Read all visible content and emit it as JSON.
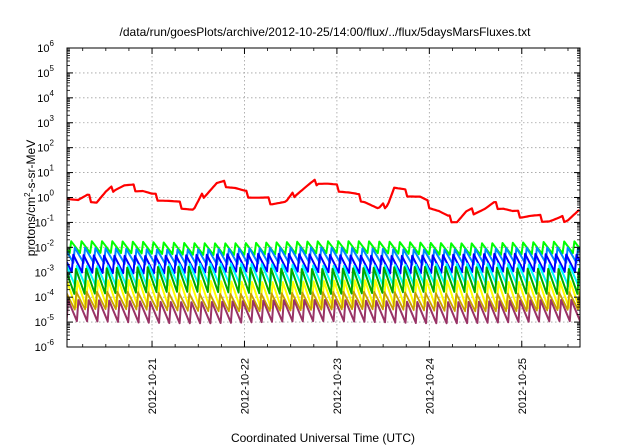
{
  "chart_data": {
    "type": "line",
    "title": "/data/run/goesPlots/archive/2012-10-25/14:00/flux/../flux/5daysMarsFluxes.txt",
    "xlabel": "Coordinated Universal Time (UTC)",
    "ylabel": {
      "base": "protons/cm",
      "exp": "2",
      "rest": "-s-sr-MeV"
    },
    "y_scale": "log",
    "ylim": [
      1e-06,
      1000000.0
    ],
    "xlim": [
      20.08,
      25.63
    ],
    "grid": true,
    "legend": "none",
    "y_ticks": [
      {
        "value": 1e-06,
        "exp": "-6"
      },
      {
        "value": 1e-05,
        "exp": "-5"
      },
      {
        "value": 0.0001,
        "exp": "-4"
      },
      {
        "value": 0.001,
        "exp": "-3"
      },
      {
        "value": 0.01,
        "exp": "-2"
      },
      {
        "value": 0.1,
        "exp": "-1"
      },
      {
        "value": 1,
        "exp": "0"
      },
      {
        "value": 10,
        "exp": "1"
      },
      {
        "value": 100,
        "exp": "2"
      },
      {
        "value": 1000,
        "exp": "3"
      },
      {
        "value": 10000,
        "exp": "4"
      },
      {
        "value": 100000,
        "exp": "5"
      },
      {
        "value": 1000000,
        "exp": "6"
      }
    ],
    "y_tick_base": "10",
    "x_ticks": [
      {
        "value": 21,
        "label": "2012-10-21"
      },
      {
        "value": 22,
        "label": "2012-10-22"
      },
      {
        "value": 23,
        "label": "2012-10-23"
      },
      {
        "value": 24,
        "label": "2012-10-24"
      },
      {
        "value": 25,
        "label": "2012-10-25"
      }
    ],
    "sawtooth_period_days": 0.1111,
    "series": [
      {
        "color": "#ff0000",
        "width": 2.2,
        "points": [
          [
            20.08,
            1.2
          ],
          [
            20.2,
            0.8
          ],
          [
            20.3,
            1.0
          ],
          [
            20.4,
            0.7
          ],
          [
            20.5,
            1.5
          ],
          [
            20.6,
            2.5
          ],
          [
            20.7,
            3.0
          ],
          [
            20.8,
            2.5
          ],
          [
            20.9,
            2.0
          ],
          [
            21.0,
            1.2
          ],
          [
            21.15,
            0.8
          ],
          [
            21.3,
            0.5
          ],
          [
            21.45,
            0.3
          ],
          [
            21.55,
            1.2
          ],
          [
            21.7,
            3.5
          ],
          [
            21.8,
            3.5
          ],
          [
            21.9,
            2.5
          ],
          [
            22.0,
            1.5
          ],
          [
            22.15,
            1.0
          ],
          [
            22.3,
            0.7
          ],
          [
            22.45,
            0.6
          ],
          [
            22.55,
            1.5
          ],
          [
            22.7,
            3.0
          ],
          [
            22.8,
            4.5
          ],
          [
            22.9,
            3.5
          ],
          [
            23.0,
            2.5
          ],
          [
            23.15,
            1.5
          ],
          [
            23.3,
            0.8
          ],
          [
            23.45,
            0.3
          ],
          [
            23.55,
            0.6
          ],
          [
            23.62,
            2.5
          ],
          [
            23.75,
            1.5
          ],
          [
            23.9,
            1.0
          ],
          [
            24.0,
            0.5
          ],
          [
            24.1,
            0.3
          ],
          [
            24.2,
            0.15
          ],
          [
            24.3,
            0.12
          ],
          [
            24.4,
            0.25
          ],
          [
            24.5,
            0.3
          ],
          [
            24.6,
            0.35
          ],
          [
            24.7,
            0.5
          ],
          [
            24.8,
            0.4
          ],
          [
            24.9,
            0.25
          ],
          [
            25.0,
            0.2
          ],
          [
            25.1,
            0.18
          ],
          [
            25.2,
            0.15
          ],
          [
            25.3,
            0.12
          ],
          [
            25.4,
            0.13
          ],
          [
            25.5,
            0.15
          ],
          [
            25.63,
            0.3
          ]
        ],
        "sawtooth_factor": 1.9
      },
      {
        "color": "#00ff00",
        "width": 2.0,
        "high": 0.016,
        "low": 0.0055,
        "phase": 0.0,
        "trend": 0.1,
        "floor": 1.0
      },
      {
        "color": "#0088ff",
        "width": 2.0,
        "high": 0.009,
        "low": 0.0022,
        "phase": 0.35,
        "trend": 0.1,
        "floor": 1.0
      },
      {
        "color": "#0000ff",
        "width": 2.0,
        "high": 0.005,
        "low": 0.001,
        "phase": 0.2,
        "trend": 0.1,
        "floor": 1.0
      },
      {
        "color": "#00ffff",
        "width": 2.0,
        "high": 0.002,
        "low": 0.0003,
        "phase": 0.55,
        "trend": 0.1,
        "floor": 1.0
      },
      {
        "color": "#00aa00",
        "width": 2.0,
        "high": 0.0015,
        "low": 0.00015,
        "phase": 0.45,
        "trend": 0.1,
        "floor": 1.0
      },
      {
        "color": "#ffff00",
        "width": 2.0,
        "high": 0.00045,
        "low": 4e-05,
        "phase": 0.6,
        "trend": 0.1,
        "floor": 1.0
      },
      {
        "color": "#c8a000",
        "width": 1.8,
        "high": 0.00015,
        "low": 3e-05,
        "phase": 0.5,
        "trend": 0.1,
        "floor": 1.0
      },
      {
        "color": "#993366",
        "width": 2.0,
        "high": 7e-05,
        "low": 1e-05,
        "phase": 0.7,
        "trend": 0.1,
        "floor": 1.0
      }
    ]
  }
}
